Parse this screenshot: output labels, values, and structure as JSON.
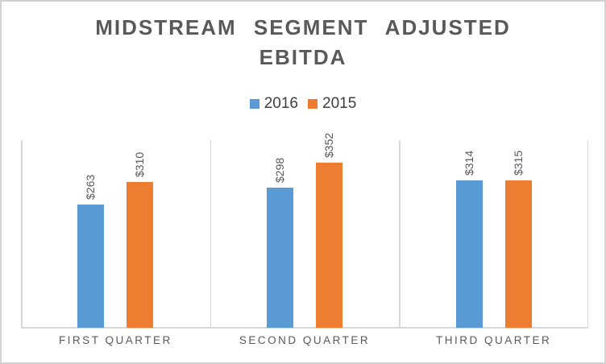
{
  "chart_data": {
    "type": "bar",
    "title": "MIDSTREAM SEGMENT ADJUSTED EBITDA",
    "categories": [
      "FIRST QUARTER",
      "SECOND QUARTER",
      "THIRD QUARTER"
    ],
    "series": [
      {
        "name": "2016",
        "color": "#5B9BD5",
        "values": [
          263,
          298,
          314
        ],
        "data_labels": [
          "$263",
          "$298",
          "$314"
        ]
      },
      {
        "name": "2015",
        "color": "#ED7D31",
        "values": [
          310,
          352,
          315
        ],
        "data_labels": [
          "$310",
          "$352",
          "$315"
        ]
      }
    ],
    "ylim": [
      0,
      400
    ],
    "legend_position": "top-center",
    "data_label_rotation": -90,
    "grid": "vertical category separator lines with bottom axis line, no horizontal gridlines, no value axis shown"
  },
  "styles": {
    "background": "#ffffff",
    "frame_border_color": "#d2d2d2",
    "title_color": "#595959",
    "legend_text_color": "#404040",
    "data_label_color": "#595959",
    "category_label_color": "#595959",
    "axis_line_color": "#d9d9d9"
  }
}
